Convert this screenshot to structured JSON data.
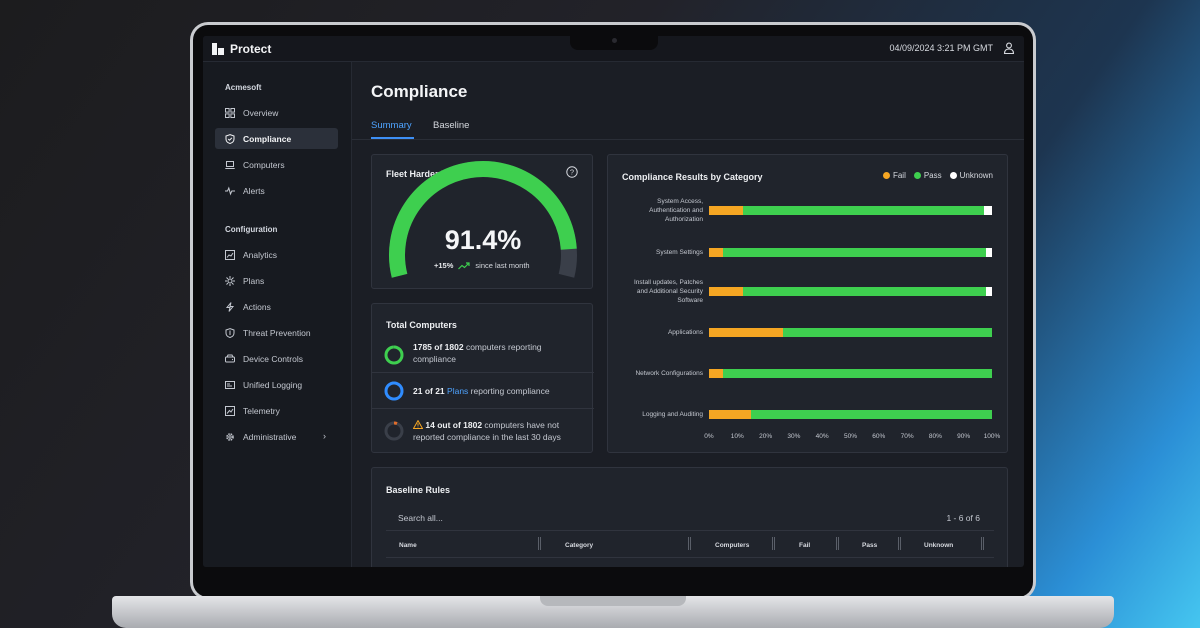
{
  "app": {
    "name": "Protect",
    "datetime": "04/09/2024 3:21 PM GMT"
  },
  "sidebar": {
    "org": "Acmesoft",
    "items": [
      {
        "label": "Overview",
        "icon": "grid-icon"
      },
      {
        "label": "Compliance",
        "icon": "shield-icon",
        "active": true
      },
      {
        "label": "Computers",
        "icon": "laptop-icon"
      },
      {
        "label": "Alerts",
        "icon": "pulse-icon"
      }
    ],
    "config_heading": "Configuration",
    "config_items": [
      {
        "label": "Analytics",
        "icon": "chart-icon"
      },
      {
        "label": "Plans",
        "icon": "gear-sun-icon"
      },
      {
        "label": "Actions",
        "icon": "bolt-icon"
      },
      {
        "label": "Threat Prevention",
        "icon": "shield-outline-icon"
      },
      {
        "label": "Device Controls",
        "icon": "drive-icon"
      },
      {
        "label": "Unified Logging",
        "icon": "log-icon"
      },
      {
        "label": "Telemetry",
        "icon": "telemetry-icon"
      },
      {
        "label": "Administrative",
        "icon": "cog-icon"
      }
    ]
  },
  "page": {
    "title": "Compliance",
    "tabs": [
      {
        "label": "Summary",
        "active": true
      },
      {
        "label": "Baseline"
      }
    ]
  },
  "fleet_score": {
    "title": "Fleet Hardening Score",
    "value": "91.4%",
    "fraction": 0.914,
    "delta": "+15%",
    "delta_text": "since last month"
  },
  "total_computers": {
    "title": "Total Computers",
    "rows": [
      {
        "strong": "1785 of 1802",
        "text": " computers reporting compliance",
        "ratio": 0.9906,
        "color": "#3ecf4f"
      },
      {
        "strong": "21 of 21",
        "link": "Plans",
        "text": " reporting compliance",
        "ratio": 1.0,
        "color": "#2f8cff"
      },
      {
        "strong": "14 out of 1802",
        "text": " computers have not reported compliance in the last 30 days",
        "ratio": 0.0078,
        "color": "#e06d2b",
        "warning": true
      }
    ]
  },
  "chart_data": {
    "type": "bar",
    "orientation": "horizontal",
    "stacked": true,
    "title": "Compliance Results by Category",
    "categories": [
      "System Access, Authentication and Authorization",
      "System Settings",
      "Install updates, Patches and Additional Security Software",
      "Applications",
      "Network Configurations",
      "Logging and Auditing"
    ],
    "category_lines": [
      [
        "System Access,",
        "Authentication and",
        "Authorization"
      ],
      [
        "System Settings"
      ],
      [
        "Install updates, Patches",
        "and Additional Security",
        "Software"
      ],
      [
        "Applications"
      ],
      [
        "Network Configurations"
      ],
      [
        "Logging and Auditing"
      ]
    ],
    "series": [
      {
        "name": "Fail",
        "color": "#f5a623",
        "values": [
          12,
          5,
          12,
          26,
          5,
          15
        ]
      },
      {
        "name": "Pass",
        "color": "#3ecf4f",
        "values": [
          85,
          93,
          86,
          74,
          95,
          85
        ]
      },
      {
        "name": "Unknown",
        "color": "#ffffff",
        "values": [
          3,
          2,
          2,
          0,
          0,
          0
        ]
      }
    ],
    "xlim": [
      0,
      100
    ],
    "ticks": [
      "0%",
      "10%",
      "20%",
      "30%",
      "40%",
      "50%",
      "60%",
      "70%",
      "80%",
      "90%",
      "100%"
    ],
    "legend": "top-right"
  },
  "baseline_rules": {
    "title": "Baseline Rules",
    "search_placeholder": "Search all...",
    "pagination": "1 - 6 of 6",
    "columns": [
      "Name",
      "Category",
      "Computers",
      "Fail",
      "Pass",
      "Unknown"
    ]
  }
}
